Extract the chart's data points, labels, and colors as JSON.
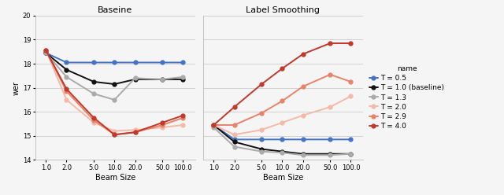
{
  "x": [
    1.0,
    2.0,
    5.0,
    10.0,
    20.0,
    50.0,
    100.0
  ],
  "x_labels": [
    "1.0",
    "2.0",
    "5.0",
    "10.0",
    "20.0",
    "50.0",
    "100.0"
  ],
  "ylim": [
    14,
    20
  ],
  "yticks": [
    14,
    15,
    16,
    17,
    18,
    19,
    20
  ],
  "ylabel": "wer",
  "xlabel": "Beam Size",
  "title_left": "Baseine",
  "title_right": "Label Smoothing",
  "legend_title": "name",
  "series": [
    {
      "name": "T = 0.5",
      "color": "#4472C4",
      "baseline_y": [
        18.45,
        18.05,
        18.05,
        18.05,
        18.05,
        18.05,
        18.05
      ],
      "smoothing_y": [
        15.45,
        14.85,
        14.85,
        14.85,
        14.85,
        14.85,
        14.85
      ]
    },
    {
      "name": "T = 1.0 (baseline)",
      "color": "#111111",
      "baseline_y": [
        18.45,
        17.75,
        17.25,
        17.15,
        17.35,
        17.35,
        17.35
      ],
      "smoothing_y": [
        15.45,
        14.75,
        14.45,
        14.35,
        14.25,
        14.25,
        14.25
      ]
    },
    {
      "name": "T = 1.3",
      "color": "#aaaaaa",
      "baseline_y": [
        18.45,
        17.45,
        16.75,
        16.5,
        17.4,
        17.35,
        17.45
      ],
      "smoothing_y": [
        15.35,
        14.55,
        14.35,
        14.3,
        14.2,
        14.2,
        14.25
      ]
    },
    {
      "name": "T = 2.0",
      "color": "#F4B9A7",
      "baseline_y": [
        18.55,
        16.5,
        15.55,
        15.2,
        15.25,
        15.35,
        15.45
      ],
      "smoothing_y": [
        15.45,
        15.05,
        15.25,
        15.55,
        15.85,
        16.2,
        16.65
      ]
    },
    {
      "name": "T = 2.9",
      "color": "#E8836A",
      "baseline_y": [
        18.55,
        16.85,
        15.65,
        15.05,
        15.15,
        15.45,
        15.75
      ],
      "smoothing_y": [
        15.45,
        15.45,
        15.95,
        16.45,
        17.05,
        17.55,
        17.25
      ]
    },
    {
      "name": "T = 4.0",
      "color": "#C0392B",
      "baseline_y": [
        18.55,
        16.95,
        15.75,
        15.05,
        15.15,
        15.55,
        15.85
      ],
      "smoothing_y": [
        15.45,
        16.2,
        17.15,
        17.8,
        18.4,
        18.85,
        18.85
      ]
    }
  ],
  "background_color": "#f5f5f5",
  "grid_color": "#cccccc",
  "marker": "o",
  "markersize": 3.5,
  "linewidth": 1.4,
  "title_fontsize": 8,
  "axis_fontsize": 7,
  "tick_fontsize": 6,
  "legend_fontsize": 6.5
}
